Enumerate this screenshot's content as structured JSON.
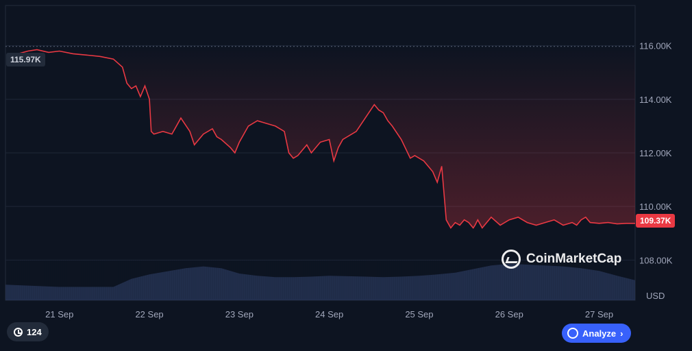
{
  "chart_data": {
    "type": "line",
    "ylabel": "USD",
    "yticks": [
      "116.00K",
      "114.00K",
      "112.00K",
      "110.00K",
      "108.00K"
    ],
    "ytick_values": [
      116000,
      114000,
      112000,
      110000,
      108000
    ],
    "ylim": [
      106500,
      117500
    ],
    "xticks": [
      "21 Sep",
      "22 Sep",
      "23 Sep",
      "24 Sep",
      "25 Sep",
      "26 Sep",
      "27 Sep"
    ],
    "xtick_values": [
      0,
      1,
      2,
      3,
      4,
      5,
      6
    ],
    "xlim": [
      -0.6,
      6.4
    ],
    "grid": true,
    "start_label": "115.97K",
    "current_label": "109.37K",
    "reference_value": 115970,
    "current_value": 109370,
    "line_color": "#ea3943",
    "series": [
      {
        "x": [
          -0.46,
          -0.35,
          -0.25,
          -0.12,
          0.0,
          0.15,
          0.3,
          0.45,
          0.6,
          0.7,
          0.75,
          0.8,
          0.85,
          0.9,
          0.95,
          1.0,
          1.02,
          1.05,
          1.15,
          1.25,
          1.35,
          1.45,
          1.5,
          1.6,
          1.7,
          1.75,
          1.8,
          1.9,
          1.95,
          2.0,
          2.1,
          2.2,
          2.3,
          2.4,
          2.5,
          2.55,
          2.6,
          2.65,
          2.7,
          2.75,
          2.8,
          2.9,
          3.0,
          3.05,
          3.1,
          3.15,
          3.2,
          3.3,
          3.4,
          3.5,
          3.55,
          3.6,
          3.65,
          3.7,
          3.8,
          3.9,
          3.95,
          4.0,
          4.05,
          4.1,
          4.15,
          4.2,
          4.25,
          4.3,
          4.35,
          4.4,
          4.45,
          4.5,
          4.55,
          4.6,
          4.62,
          4.65,
          4.7,
          4.8,
          4.9,
          5.0,
          5.1,
          5.2,
          5.3,
          5.4,
          5.5,
          5.6,
          5.7,
          5.75,
          5.8,
          5.85,
          5.9,
          6.0,
          6.1,
          6.2,
          6.3,
          6.4
        ],
        "y": [
          115700,
          115800,
          115850,
          115750,
          115800,
          115700,
          115650,
          115600,
          115500,
          115200,
          114600,
          114400,
          114500,
          114100,
          114500,
          114000,
          112800,
          112700,
          112800,
          112700,
          113300,
          112800,
          112300,
          112700,
          112900,
          112600,
          112500,
          112200,
          112000,
          112400,
          113000,
          113200,
          113100,
          113000,
          112800,
          112000,
          111800,
          111900,
          112100,
          112300,
          112000,
          112400,
          112500,
          111700,
          112200,
          112500,
          112600,
          112800,
          113300,
          113800,
          113600,
          113500,
          113200,
          113000,
          112500,
          111800,
          111900,
          111800,
          111700,
          111500,
          111300,
          110900,
          111500,
          109500,
          109200,
          109400,
          109300,
          109500,
          109400,
          109200,
          109300,
          109500,
          109200,
          109600,
          109300,
          109500,
          109600,
          109400,
          109300,
          109400,
          109500,
          109300,
          109400,
          109300,
          109500,
          109600,
          109400,
          109370,
          109400,
          109350,
          109370,
          109370
        ]
      }
    ],
    "volume": {
      "x": [
        -0.6,
        0.0,
        0.6,
        0.8,
        1.0,
        1.2,
        1.4,
        1.6,
        1.8,
        2.0,
        2.2,
        2.4,
        2.6,
        2.8,
        3.0,
        3.2,
        3.4,
        3.6,
        3.8,
        4.0,
        4.2,
        4.4,
        4.6,
        4.8,
        5.0,
        5.2,
        5.4,
        5.6,
        5.8,
        6.0,
        6.2,
        6.4
      ],
      "v": [
        0.35,
        0.3,
        0.3,
        0.48,
        0.58,
        0.65,
        0.72,
        0.76,
        0.72,
        0.6,
        0.55,
        0.52,
        0.52,
        0.53,
        0.55,
        0.54,
        0.53,
        0.52,
        0.53,
        0.55,
        0.58,
        0.62,
        0.7,
        0.78,
        0.82,
        0.8,
        0.78,
        0.76,
        0.72,
        0.66,
        0.55,
        0.45
      ]
    }
  },
  "watermark": "CoinMarketCap",
  "history_count": "124",
  "analyze_label": "Analyze",
  "chevron": "›",
  "unit": "USD",
  "icons": {
    "history": "history-icon",
    "analyze": "analyze-icon",
    "logo": "coinmarketcap-logo-icon"
  }
}
